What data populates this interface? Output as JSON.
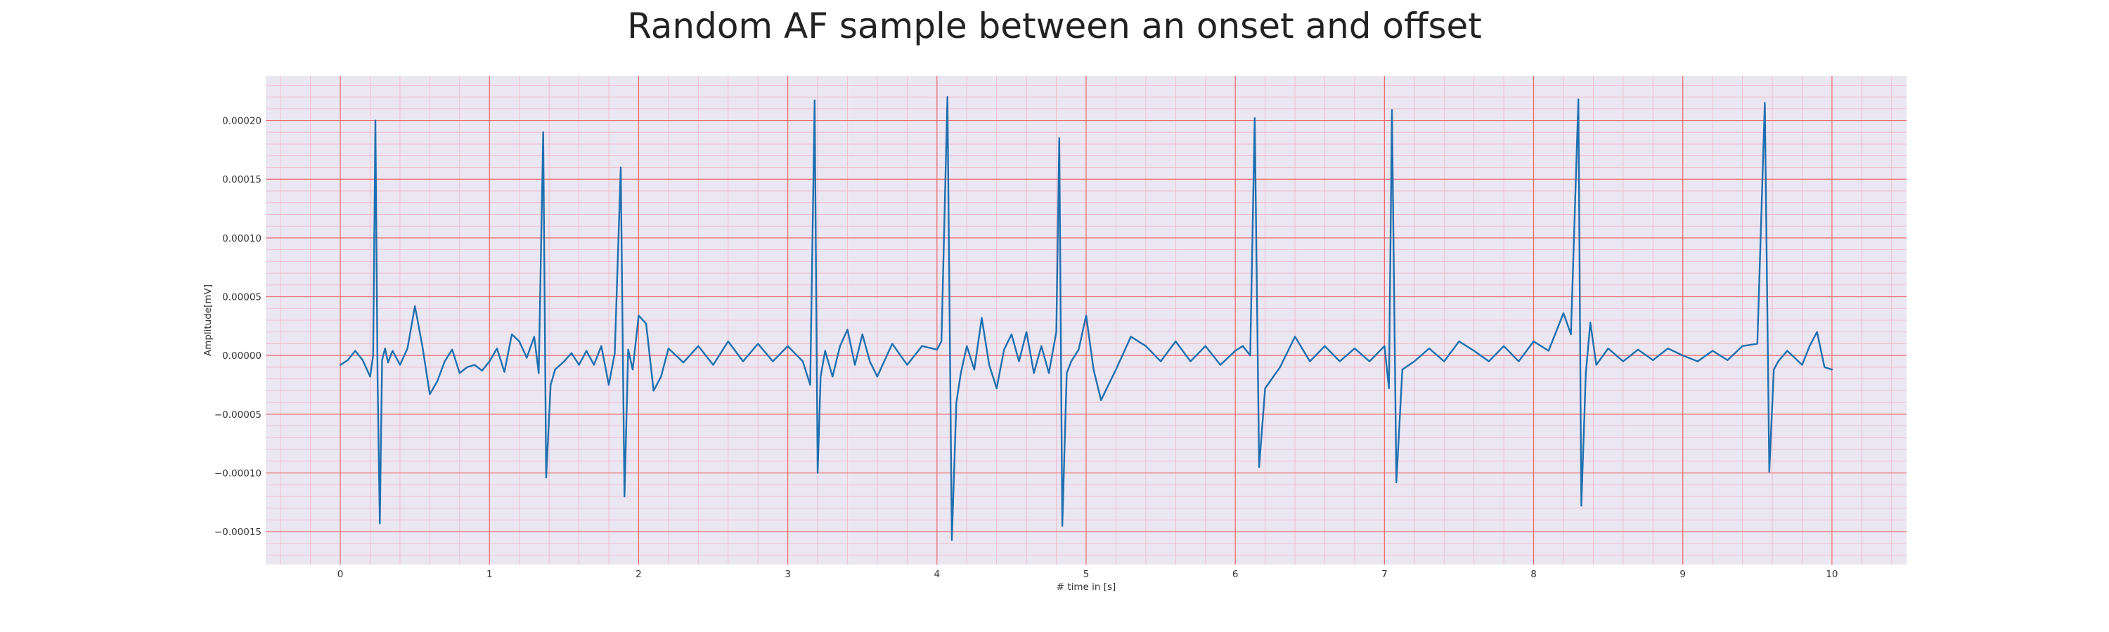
{
  "chart_data": {
    "type": "line",
    "title": "Random AF sample between an onset and offset",
    "xlabel": "# time in [s]",
    "ylabel": "Amplitude[mV]",
    "xlim": [
      -0.5,
      10.5
    ],
    "ylim": [
      -0.000178,
      0.000238
    ],
    "x_ticks": [
      0,
      1,
      2,
      3,
      4,
      5,
      6,
      7,
      8,
      9,
      10
    ],
    "x_tick_labels": [
      "0",
      "1",
      "2",
      "3",
      "4",
      "5",
      "6",
      "7",
      "8",
      "9",
      "10"
    ],
    "y_ticks": [
      -0.00015,
      -0.0001,
      -5e-05,
      0,
      5e-05,
      0.0001,
      0.00015,
      0.0002
    ],
    "y_tick_labels": [
      "−0.00015",
      "−0.00010",
      "−0.00005",
      "0.00000",
      "0.00005",
      "0.00010",
      "0.00015",
      "0.00020"
    ],
    "x_minor_step": 0.2,
    "y_minor_step": 1e-05,
    "grid": true,
    "colors": {
      "background": "#eae6f2",
      "major_grid": "#ee6a6a",
      "minor_grid": "#f3b6c6",
      "line": "#1f6fae"
    },
    "series": [
      {
        "x": [
          0.0,
          0.05,
          0.1,
          0.15,
          0.2,
          0.22,
          0.235,
          0.25,
          0.265,
          0.28,
          0.3,
          0.32,
          0.35,
          0.4,
          0.45,
          0.5,
          0.55,
          0.6,
          0.65,
          0.7,
          0.75,
          0.8,
          0.85,
          0.9,
          0.95,
          1.0,
          1.05,
          1.1,
          1.15,
          1.2,
          1.25,
          1.3,
          1.33,
          1.36,
          1.38,
          1.41,
          1.44,
          1.5,
          1.55,
          1.6,
          1.65,
          1.7,
          1.75,
          1.8,
          1.84,
          1.88,
          1.905,
          1.93,
          1.96,
          2.0,
          2.05,
          2.1,
          2.15,
          2.2,
          2.3,
          2.4,
          2.5,
          2.6,
          2.7,
          2.8,
          2.9,
          3.0,
          3.1,
          3.15,
          3.18,
          3.2,
          3.22,
          3.25,
          3.3,
          3.35,
          3.4,
          3.45,
          3.5,
          3.55,
          3.6,
          3.7,
          3.8,
          3.9,
          4.0,
          4.03,
          4.07,
          4.1,
          4.13,
          4.16,
          4.2,
          4.25,
          4.3,
          4.35,
          4.4,
          4.45,
          4.5,
          4.55,
          4.6,
          4.65,
          4.7,
          4.75,
          4.8,
          4.82,
          4.84,
          4.87,
          4.9,
          4.95,
          5.0,
          5.05,
          5.1,
          5.15,
          5.2,
          5.3,
          5.4,
          5.5,
          5.6,
          5.7,
          5.8,
          5.9,
          6.0,
          6.05,
          6.1,
          6.13,
          6.16,
          6.2,
          6.3,
          6.4,
          6.5,
          6.6,
          6.7,
          6.8,
          6.9,
          7.0,
          7.03,
          7.05,
          7.08,
          7.12,
          7.2,
          7.3,
          7.4,
          7.5,
          7.6,
          7.7,
          7.8,
          7.9,
          8.0,
          8.1,
          8.2,
          8.25,
          8.3,
          8.32,
          8.35,
          8.38,
          8.42,
          8.5,
          8.6,
          8.7,
          8.8,
          8.9,
          9.0,
          9.1,
          9.2,
          9.3,
          9.4,
          9.5,
          9.55,
          9.58,
          9.61,
          9.64,
          9.7,
          9.8,
          9.85,
          9.9,
          9.95,
          10.0
        ],
        "y": [
          -8e-06,
          -4e-06,
          4e-06,
          -4e-06,
          -1.8e-05,
          0.0,
          0.0002,
          -2e-05,
          -0.000143,
          -4e-06,
          6e-06,
          -6e-06,
          4e-06,
          -8e-06,
          6e-06,
          4.2e-05,
          8e-06,
          -3.3e-05,
          -2.2e-05,
          -5e-06,
          5e-06,
          -1.5e-05,
          -1e-05,
          -8e-06,
          -1.3e-05,
          -5e-06,
          6e-06,
          -1.4e-05,
          1.8e-05,
          1.2e-05,
          -2e-06,
          1.6e-05,
          -1.5e-05,
          0.00019,
          -0.000104,
          -2.5e-05,
          -1.2e-05,
          -5e-06,
          2e-06,
          -8e-06,
          4e-06,
          -8e-06,
          8e-06,
          -2.5e-05,
          2e-06,
          0.00016,
          -0.00012,
          5e-06,
          -1.2e-05,
          3.4e-05,
          2.7e-05,
          -3e-05,
          -1.8e-05,
          6e-06,
          -6e-06,
          8e-06,
          -8e-06,
          1.2e-05,
          -5e-06,
          1e-05,
          -5e-06,
          8e-06,
          -5e-06,
          -2.5e-05,
          0.000217,
          -0.0001,
          -1.8e-05,
          4e-06,
          -1.8e-05,
          8e-06,
          2.2e-05,
          -8e-06,
          1.8e-05,
          -5e-06,
          -1.8e-05,
          1e-05,
          -8e-06,
          8e-06,
          5e-06,
          1.2e-05,
          0.00022,
          -0.000157,
          -4e-05,
          -1.5e-05,
          8e-06,
          -1.2e-05,
          3.2e-05,
          -8e-06,
          -2.8e-05,
          5e-06,
          1.8e-05,
          -5e-06,
          2e-05,
          -1.5e-05,
          8e-06,
          -1.5e-05,
          2e-05,
          0.000185,
          -0.000145,
          -1.5e-05,
          -5e-06,
          5e-06,
          3.4e-05,
          -1.2e-05,
          -3.8e-05,
          -2.5e-05,
          -1.2e-05,
          1.6e-05,
          8e-06,
          -5e-06,
          1.2e-05,
          -5e-06,
          8e-06,
          -8e-06,
          4e-06,
          8e-06,
          0.0,
          0.000202,
          -9.5e-05,
          -2.8e-05,
          -1e-05,
          1.6e-05,
          -5e-06,
          8e-06,
          -5e-06,
          6e-06,
          -5e-06,
          8e-06,
          -2.8e-05,
          0.000209,
          -0.000108,
          -1.2e-05,
          -5e-06,
          6e-06,
          -5e-06,
          1.2e-05,
          4e-06,
          -5e-06,
          8e-06,
          -5e-06,
          1.2e-05,
          4e-06,
          3.6e-05,
          1.8e-05,
          0.000218,
          -0.000128,
          -1.5e-05,
          2.8e-05,
          -8e-06,
          6e-06,
          -5e-06,
          5e-06,
          -4e-06,
          6e-06,
          0.0,
          -5e-06,
          4e-06,
          -4e-06,
          8e-06,
          1e-05,
          0.000215,
          -9.9e-05,
          -1.2e-05,
          -5e-06,
          4e-06,
          -8e-06,
          8e-06,
          2e-05,
          -1e-05,
          -1.2e-05
        ]
      }
    ]
  }
}
